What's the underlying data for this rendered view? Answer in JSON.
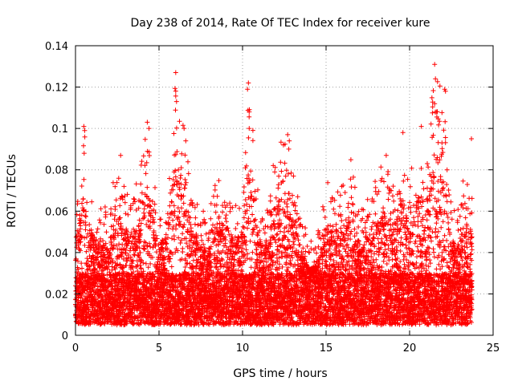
{
  "chart_data": {
    "type": "scatter",
    "title": "Day 238 of 2014, Rate Of TEC Index for receiver kure",
    "xlabel": "GPS time / hours",
    "ylabel": "ROTI / TECUs",
    "xlim": [
      0,
      25
    ],
    "ylim": [
      0,
      0.14
    ],
    "xticks": [
      0,
      5,
      10,
      15,
      20,
      25
    ],
    "xtick_labels": [
      "0",
      "5",
      "10",
      "15",
      "20",
      "25"
    ],
    "yticks": [
      0,
      0.02,
      0.04,
      0.06,
      0.08,
      0.1,
      0.12,
      0.14
    ],
    "ytick_labels": [
      "0",
      "0.02",
      "0.04",
      "0.06",
      "0.08",
      "0.1",
      "0.12",
      "0.14"
    ],
    "grid": true,
    "marker": "+",
    "series": [
      {
        "name": "ROTI",
        "color": "#ff0000",
        "x_range": [
          0,
          23.75
        ],
        "sample_interval_hours": 0.00833,
        "background_level_range": [
          0.005,
          0.03
        ],
        "envelope": [
          {
            "x": 0.0,
            "max": 0.065
          },
          {
            "x": 0.5,
            "max": 0.1
          },
          {
            "x": 1.0,
            "max": 0.07
          },
          {
            "x": 1.5,
            "max": 0.062
          },
          {
            "x": 2.0,
            "max": 0.065
          },
          {
            "x": 2.5,
            "max": 0.085
          },
          {
            "x": 3.0,
            "max": 0.07
          },
          {
            "x": 3.5,
            "max": 0.07
          },
          {
            "x": 4.0,
            "max": 0.085
          },
          {
            "x": 4.3,
            "max": 0.103
          },
          {
            "x": 5.0,
            "max": 0.062
          },
          {
            "x": 5.5,
            "max": 0.072
          },
          {
            "x": 6.0,
            "max": 0.127
          },
          {
            "x": 6.5,
            "max": 0.1
          },
          {
            "x": 7.0,
            "max": 0.072
          },
          {
            "x": 7.5,
            "max": 0.06
          },
          {
            "x": 8.0,
            "max": 0.06
          },
          {
            "x": 8.5,
            "max": 0.078
          },
          {
            "x": 9.0,
            "max": 0.078
          },
          {
            "x": 9.5,
            "max": 0.065
          },
          {
            "x": 10.0,
            "max": 0.072
          },
          {
            "x": 10.4,
            "max": 0.122
          },
          {
            "x": 11.0,
            "max": 0.065
          },
          {
            "x": 11.5,
            "max": 0.062
          },
          {
            "x": 12.0,
            "max": 0.092
          },
          {
            "x": 12.7,
            "max": 0.097
          },
          {
            "x": 13.5,
            "max": 0.06
          },
          {
            "x": 14.0,
            "max": 0.045
          },
          {
            "x": 14.5,
            "max": 0.05
          },
          {
            "x": 15.0,
            "max": 0.077
          },
          {
            "x": 15.5,
            "max": 0.075
          },
          {
            "x": 16.0,
            "max": 0.072
          },
          {
            "x": 16.5,
            "max": 0.086
          },
          {
            "x": 17.0,
            "max": 0.06
          },
          {
            "x": 17.5,
            "max": 0.068
          },
          {
            "x": 18.0,
            "max": 0.076
          },
          {
            "x": 18.5,
            "max": 0.087
          },
          {
            "x": 19.0,
            "max": 0.072
          },
          {
            "x": 19.5,
            "max": 0.098
          },
          {
            "x": 20.0,
            "max": 0.075
          },
          {
            "x": 20.5,
            "max": 0.1
          },
          {
            "x": 21.0,
            "max": 0.09
          },
          {
            "x": 21.5,
            "max": 0.131
          },
          {
            "x": 22.0,
            "max": 0.118
          },
          {
            "x": 22.5,
            "max": 0.062
          },
          {
            "x": 23.0,
            "max": 0.062
          },
          {
            "x": 23.5,
            "max": 0.095
          },
          {
            "x": 23.75,
            "max": 0.065
          }
        ],
        "spikes": [
          {
            "x": 0.5,
            "y": 0.101
          },
          {
            "x": 0.55,
            "y": 0.099
          },
          {
            "x": 0.52,
            "y": 0.088
          },
          {
            "x": 2.7,
            "y": 0.087
          },
          {
            "x": 4.3,
            "y": 0.103
          },
          {
            "x": 4.4,
            "y": 0.1
          },
          {
            "x": 6.0,
            "y": 0.127
          },
          {
            "x": 6.05,
            "y": 0.113
          },
          {
            "x": 6.5,
            "y": 0.1
          },
          {
            "x": 6.6,
            "y": 0.094
          },
          {
            "x": 10.3,
            "y": 0.119
          },
          {
            "x": 10.35,
            "y": 0.122
          },
          {
            "x": 10.4,
            "y": 0.108
          },
          {
            "x": 10.4,
            "y": 0.1
          },
          {
            "x": 12.7,
            "y": 0.097
          },
          {
            "x": 12.8,
            "y": 0.094
          },
          {
            "x": 18.6,
            "y": 0.087
          },
          {
            "x": 19.6,
            "y": 0.098
          },
          {
            "x": 20.7,
            "y": 0.101
          },
          {
            "x": 21.5,
            "y": 0.131
          },
          {
            "x": 21.55,
            "y": 0.124
          },
          {
            "x": 21.5,
            "y": 0.112
          },
          {
            "x": 21.6,
            "y": 0.108
          },
          {
            "x": 22.1,
            "y": 0.119
          },
          {
            "x": 22.15,
            "y": 0.118
          },
          {
            "x": 23.7,
            "y": 0.095
          }
        ]
      }
    ]
  }
}
